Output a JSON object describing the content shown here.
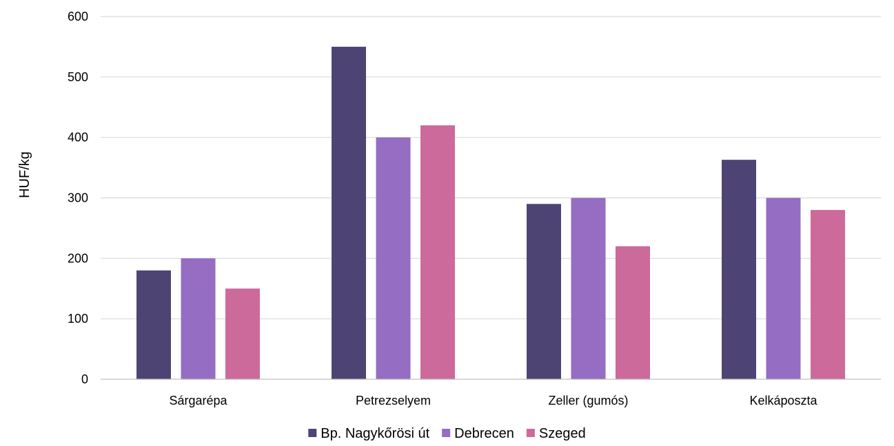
{
  "chart_data": {
    "type": "bar",
    "categories": [
      "Sárgarépa",
      "Petrezselyem",
      "Zeller (gumós)",
      "Kelkáposzta"
    ],
    "series": [
      {
        "name": "Bp. Nagykőrösi út",
        "color": "#4e4474",
        "values": [
          180,
          550,
          290,
          363
        ]
      },
      {
        "name": "Debrecen",
        "color": "#956dc3",
        "values": [
          200,
          400,
          300,
          300
        ]
      },
      {
        "name": "Szeged",
        "color": "#cc6a9b",
        "values": [
          150,
          420,
          220,
          280
        ]
      }
    ],
    "ylabel": "HUF/kg",
    "xlabel": "",
    "ylim": [
      0,
      600
    ],
    "yticks": [
      0,
      100,
      200,
      300,
      400,
      500,
      600
    ],
    "grid": true,
    "legend_position": "bottom"
  }
}
